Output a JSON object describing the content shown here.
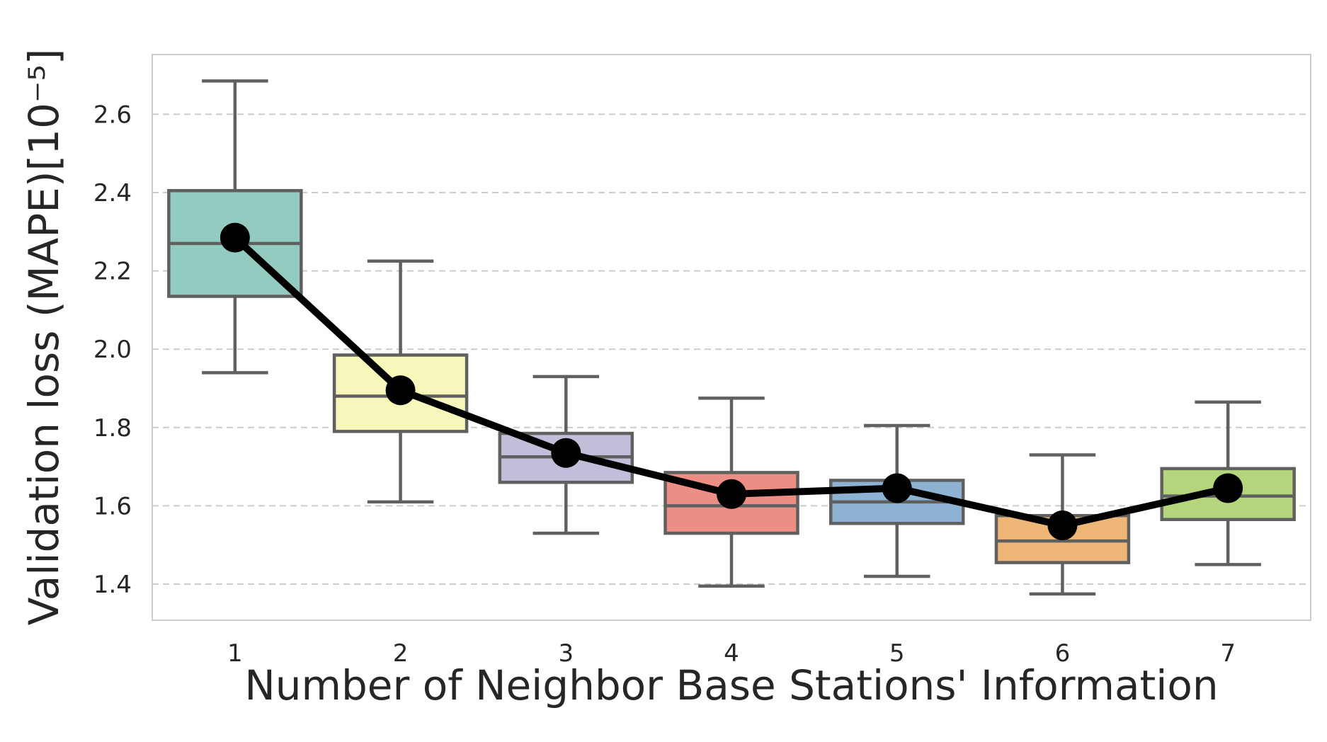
{
  "chart_data": {
    "type": "box",
    "xlabel": "Number of Neighbor Base Stations' Information",
    "ylabel": "Validation loss (MAPE)[10⁻⁵]",
    "ylim": [
      1.31,
      2.75
    ],
    "yticks": [
      1.4,
      1.6,
      1.8,
      2.0,
      2.2,
      2.4,
      2.6
    ],
    "ytick_labels": [
      "1.4",
      "1.6",
      "1.8",
      "2.0",
      "2.2",
      "2.4",
      "2.6"
    ],
    "grid": "y-dashed",
    "categories": [
      "1",
      "2",
      "3",
      "4",
      "5",
      "6",
      "7"
    ],
    "boxes": [
      {
        "whisker_low": 1.94,
        "q1": 2.135,
        "median": 2.27,
        "q3": 2.405,
        "whisker_high": 2.685,
        "color": "#94cbc0"
      },
      {
        "whisker_low": 1.61,
        "q1": 1.79,
        "median": 1.88,
        "q3": 1.985,
        "whisker_high": 2.225,
        "color": "#f8f7bb"
      },
      {
        "whisker_low": 1.53,
        "q1": 1.66,
        "median": 1.725,
        "q3": 1.785,
        "whisker_high": 1.93,
        "color": "#c0bed8"
      },
      {
        "whisker_low": 1.395,
        "q1": 1.53,
        "median": 1.6,
        "q3": 1.685,
        "whisker_high": 1.875,
        "color": "#ec8e84"
      },
      {
        "whisker_low": 1.42,
        "q1": 1.555,
        "median": 1.61,
        "q3": 1.665,
        "whisker_high": 1.805,
        "color": "#8eb3d2"
      },
      {
        "whisker_low": 1.375,
        "q1": 1.455,
        "median": 1.51,
        "q3": 1.575,
        "whisker_high": 1.73,
        "color": "#eeb677"
      },
      {
        "whisker_low": 1.45,
        "q1": 1.565,
        "median": 1.625,
        "q3": 1.695,
        "whisker_high": 1.865,
        "color": "#b4d57b"
      }
    ],
    "mean_line": {
      "values": [
        2.285,
        1.895,
        1.735,
        1.63,
        1.645,
        1.55,
        1.645
      ],
      "color": "#000000"
    }
  }
}
